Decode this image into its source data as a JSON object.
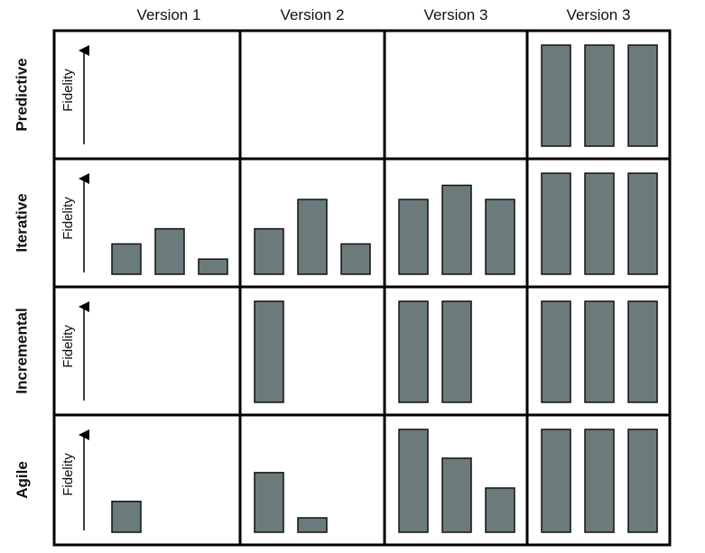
{
  "columns": [
    "Version 1",
    "Version 2",
    "Version 3",
    "Version 3"
  ],
  "rows": [
    {
      "label": "Predictive",
      "axis_label": "Fidelity",
      "cells": [
        [],
        [],
        [],
        [
          1,
          1,
          1
        ]
      ]
    },
    {
      "label": "Iterative",
      "axis_label": "Fidelity",
      "cells": [
        [
          0.3,
          0.45,
          0.15
        ],
        [
          0.45,
          0.74,
          0.3
        ],
        [
          0.74,
          0.88,
          0.74
        ],
        [
          1,
          1,
          1
        ]
      ]
    },
    {
      "label": "Incremental",
      "axis_label": "Fidelity",
      "cells": [
        [],
        [
          1
        ],
        [
          1,
          1
        ],
        [
          1,
          1,
          1
        ]
      ]
    },
    {
      "label": "Agile",
      "axis_label": "Fidelity",
      "cells": [
        [
          0.3
        ],
        [
          0.58,
          0.14
        ],
        [
          1,
          0.72,
          0.43
        ],
        [
          1,
          1,
          1
        ]
      ]
    }
  ],
  "colors": {
    "bar_fill": "#6b7b7b",
    "bar_stroke": "#111111",
    "grid": "#000000"
  }
}
